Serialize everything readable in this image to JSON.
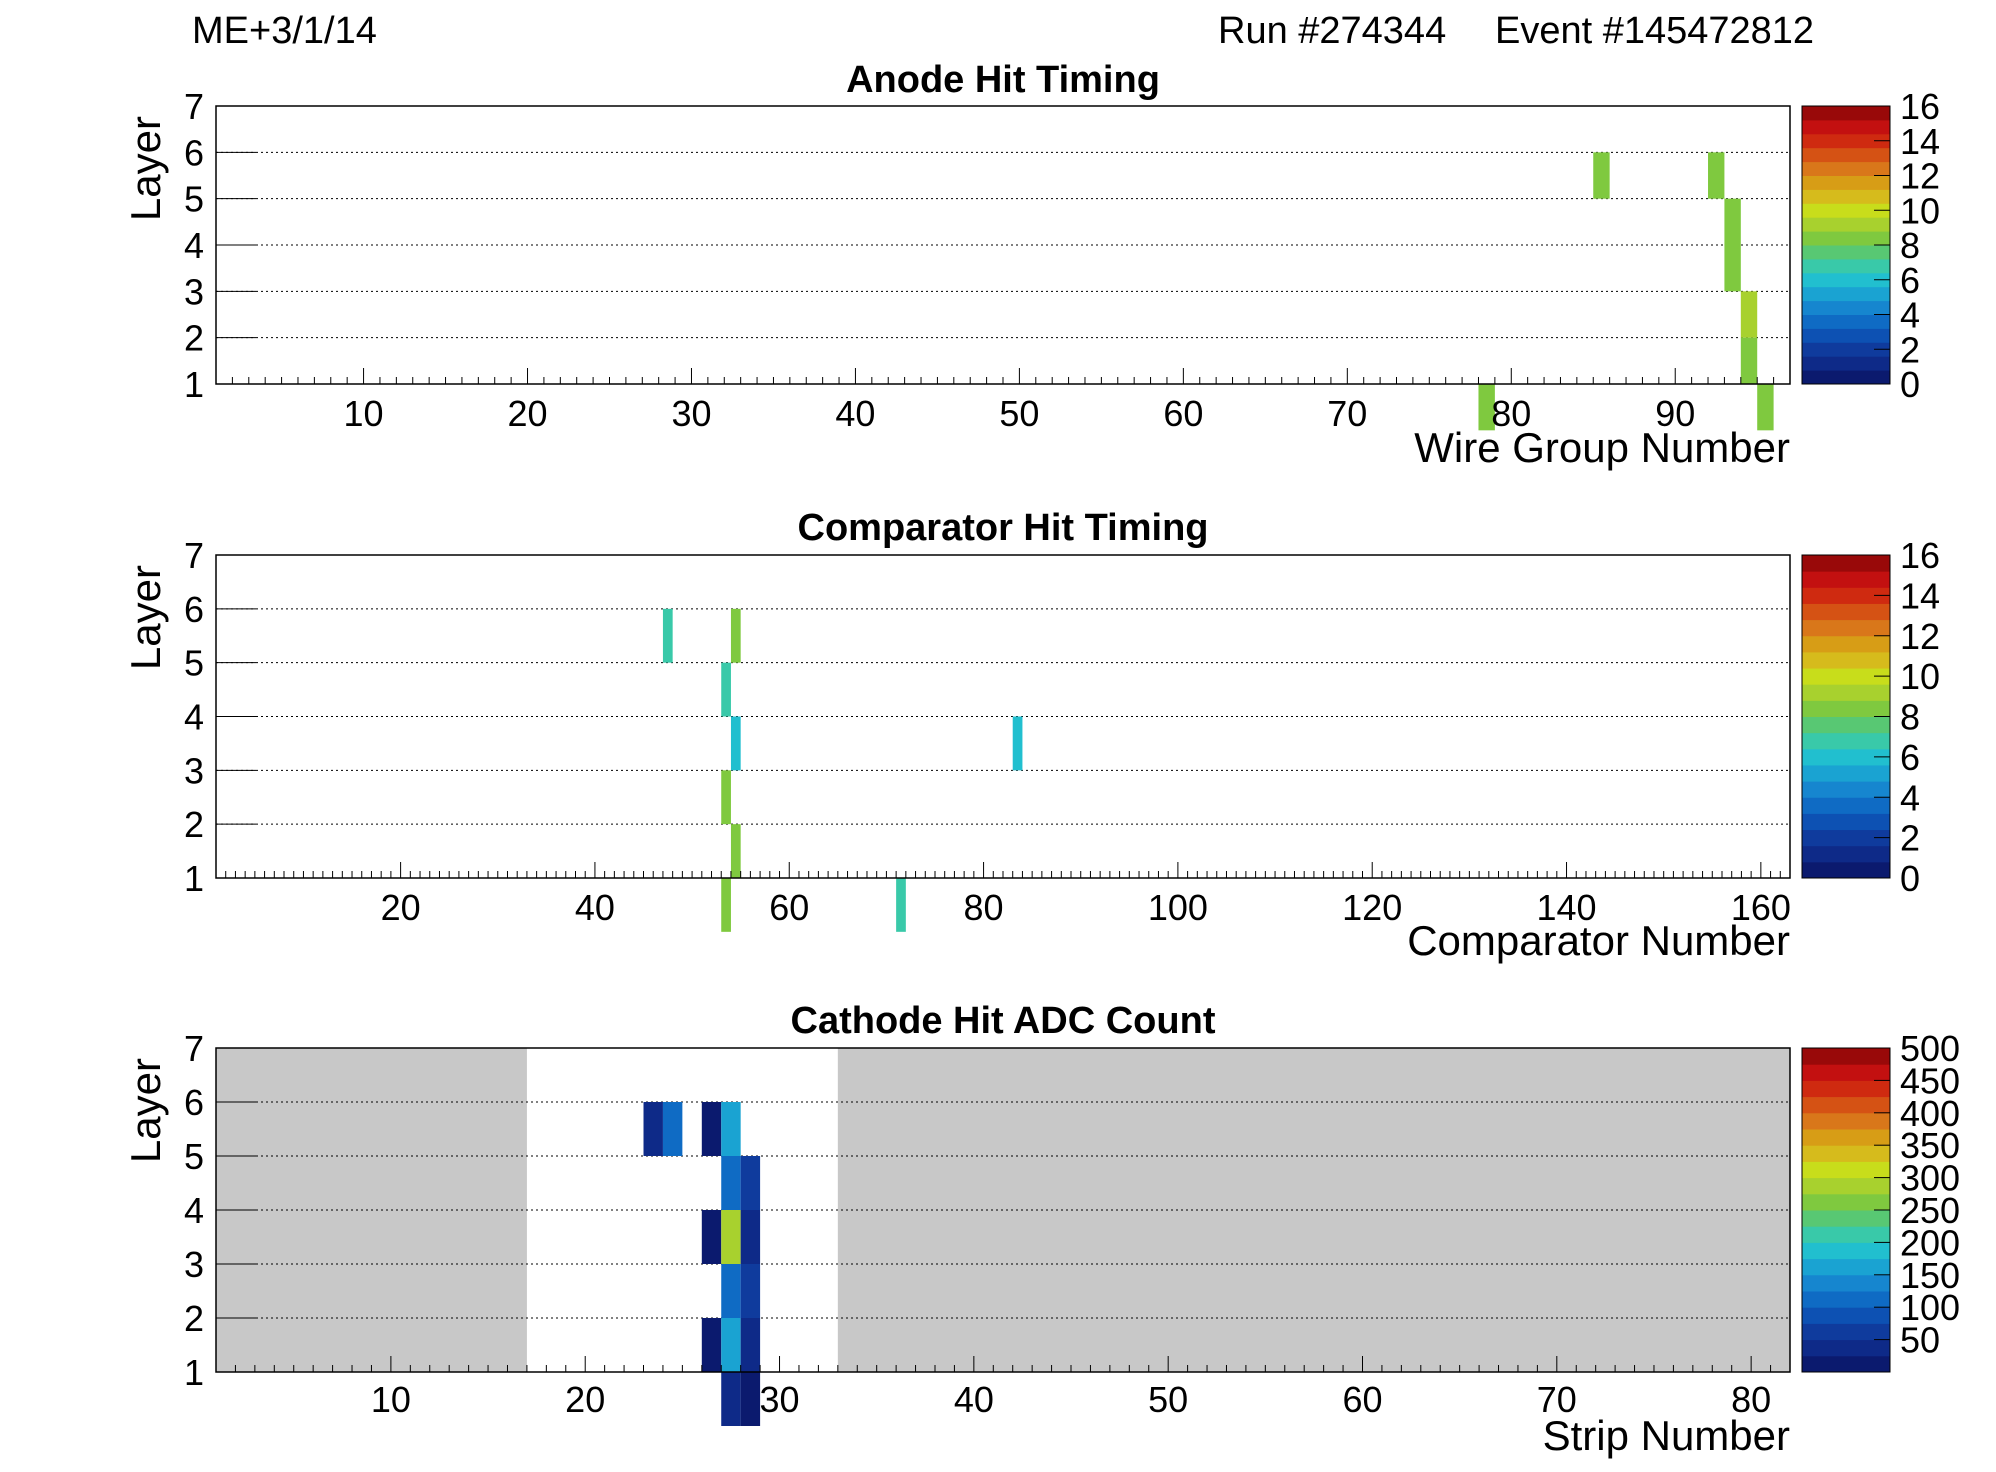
{
  "header": {
    "chamber": "ME+3/1/14",
    "run": "Run #274344",
    "event": "Event #145472812"
  },
  "palette": [
    "#0b1a6e",
    "#0e2a88",
    "#0f3b9d",
    "#0d51b3",
    "#0f6bc4",
    "#1686cf",
    "#1aa3d2",
    "#21bfcf",
    "#39c9a9",
    "#58c873",
    "#7fc93f",
    "#a8d12e",
    "#c8dd1b",
    "#d6bb1c",
    "#d79d16",
    "#d9771a",
    "#d55214",
    "#cf2a10",
    "#c31010",
    "#990909"
  ],
  "chart_data": [
    {
      "type": "heatmap",
      "title": "Anode Hit Timing",
      "xlabel": "Wire Group Number",
      "ylabel": "Layer",
      "xlim": [
        1,
        97
      ],
      "ylim": [
        1,
        7
      ],
      "xticks": [
        10,
        20,
        30,
        40,
        50,
        60,
        70,
        80,
        90
      ],
      "yticks": [
        1,
        2,
        3,
        4,
        5,
        6,
        7
      ],
      "grid": "horizontal-dotted",
      "zlim": [
        0,
        16
      ],
      "colorbar_ticks": [
        0,
        2,
        4,
        6,
        8,
        10,
        12,
        14,
        16
      ],
      "missing_region": [],
      "cells": [
        {
          "x": 78,
          "layer": 1,
          "value": 8
        },
        {
          "x": 85,
          "layer": 6,
          "value": 8
        },
        {
          "x": 92,
          "layer": 6,
          "value": 8
        },
        {
          "x": 93,
          "layer": 5,
          "value": 8
        },
        {
          "x": 93,
          "layer": 4,
          "value": 8
        },
        {
          "x": 94,
          "layer": 3,
          "value": 9
        },
        {
          "x": 94,
          "layer": 2,
          "value": 8
        },
        {
          "x": 95,
          "layer": 1,
          "value": 8
        }
      ]
    },
    {
      "type": "heatmap",
      "title": "Comparator Hit Timing",
      "xlabel": "Comparator Number",
      "ylabel": "Layer",
      "xlim": [
        1,
        163
      ],
      "ylim": [
        1,
        7
      ],
      "xticks": [
        20,
        40,
        60,
        80,
        100,
        120,
        140,
        160
      ],
      "yticks": [
        1,
        2,
        3,
        4,
        5,
        6,
        7
      ],
      "grid": "horizontal-dotted",
      "zlim": [
        0,
        16
      ],
      "colorbar_ticks": [
        0,
        2,
        4,
        6,
        8,
        10,
        12,
        14,
        16
      ],
      "missing_region": [],
      "cells": [
        {
          "x": 47,
          "layer": 6,
          "value": 7
        },
        {
          "x": 54,
          "layer": 6,
          "value": 8
        },
        {
          "x": 53,
          "layer": 5,
          "value": 7
        },
        {
          "x": 54,
          "layer": 4,
          "value": 6
        },
        {
          "x": 83,
          "layer": 4,
          "value": 6
        },
        {
          "x": 53,
          "layer": 3,
          "value": 8
        },
        {
          "x": 54,
          "layer": 2,
          "value": 8
        },
        {
          "x": 53,
          "layer": 1,
          "value": 8
        },
        {
          "x": 71,
          "layer": 1,
          "value": 7
        }
      ]
    },
    {
      "type": "heatmap",
      "title": "Cathode Hit ADC Count",
      "xlabel": "Strip Number",
      "ylabel": "Layer",
      "xlim": [
        1,
        82
      ],
      "ylim": [
        1,
        7
      ],
      "xticks": [
        10,
        20,
        30,
        40,
        50,
        60,
        70,
        80
      ],
      "yticks": [
        1,
        2,
        3,
        4,
        5,
        6,
        7
      ],
      "grid": "horizontal-dotted",
      "zlim": [
        0,
        500
      ],
      "colorbar_ticks": [
        50,
        100,
        150,
        200,
        250,
        300,
        350,
        400,
        450,
        500
      ],
      "missing_region": [
        17,
        33
      ],
      "cells": [
        {
          "x": 23,
          "layer": 6,
          "value": 40
        },
        {
          "x": 24,
          "layer": 6,
          "value": 110
        },
        {
          "x": 26,
          "layer": 6,
          "value": 20
        },
        {
          "x": 27,
          "layer": 6,
          "value": 170
        },
        {
          "x": 27,
          "layer": 5,
          "value": 110
        },
        {
          "x": 28,
          "layer": 5,
          "value": 50
        },
        {
          "x": 26,
          "layer": 4,
          "value": 20
        },
        {
          "x": 27,
          "layer": 4,
          "value": 280
        },
        {
          "x": 28,
          "layer": 4,
          "value": 25
        },
        {
          "x": 27,
          "layer": 3,
          "value": 110
        },
        {
          "x": 28,
          "layer": 3,
          "value": 60
        },
        {
          "x": 26,
          "layer": 2,
          "value": 20
        },
        {
          "x": 27,
          "layer": 2,
          "value": 160
        },
        {
          "x": 28,
          "layer": 2,
          "value": 25
        },
        {
          "x": 27,
          "layer": 1,
          "value": 40
        },
        {
          "x": 28,
          "layer": 1,
          "value": 20
        }
      ]
    }
  ]
}
